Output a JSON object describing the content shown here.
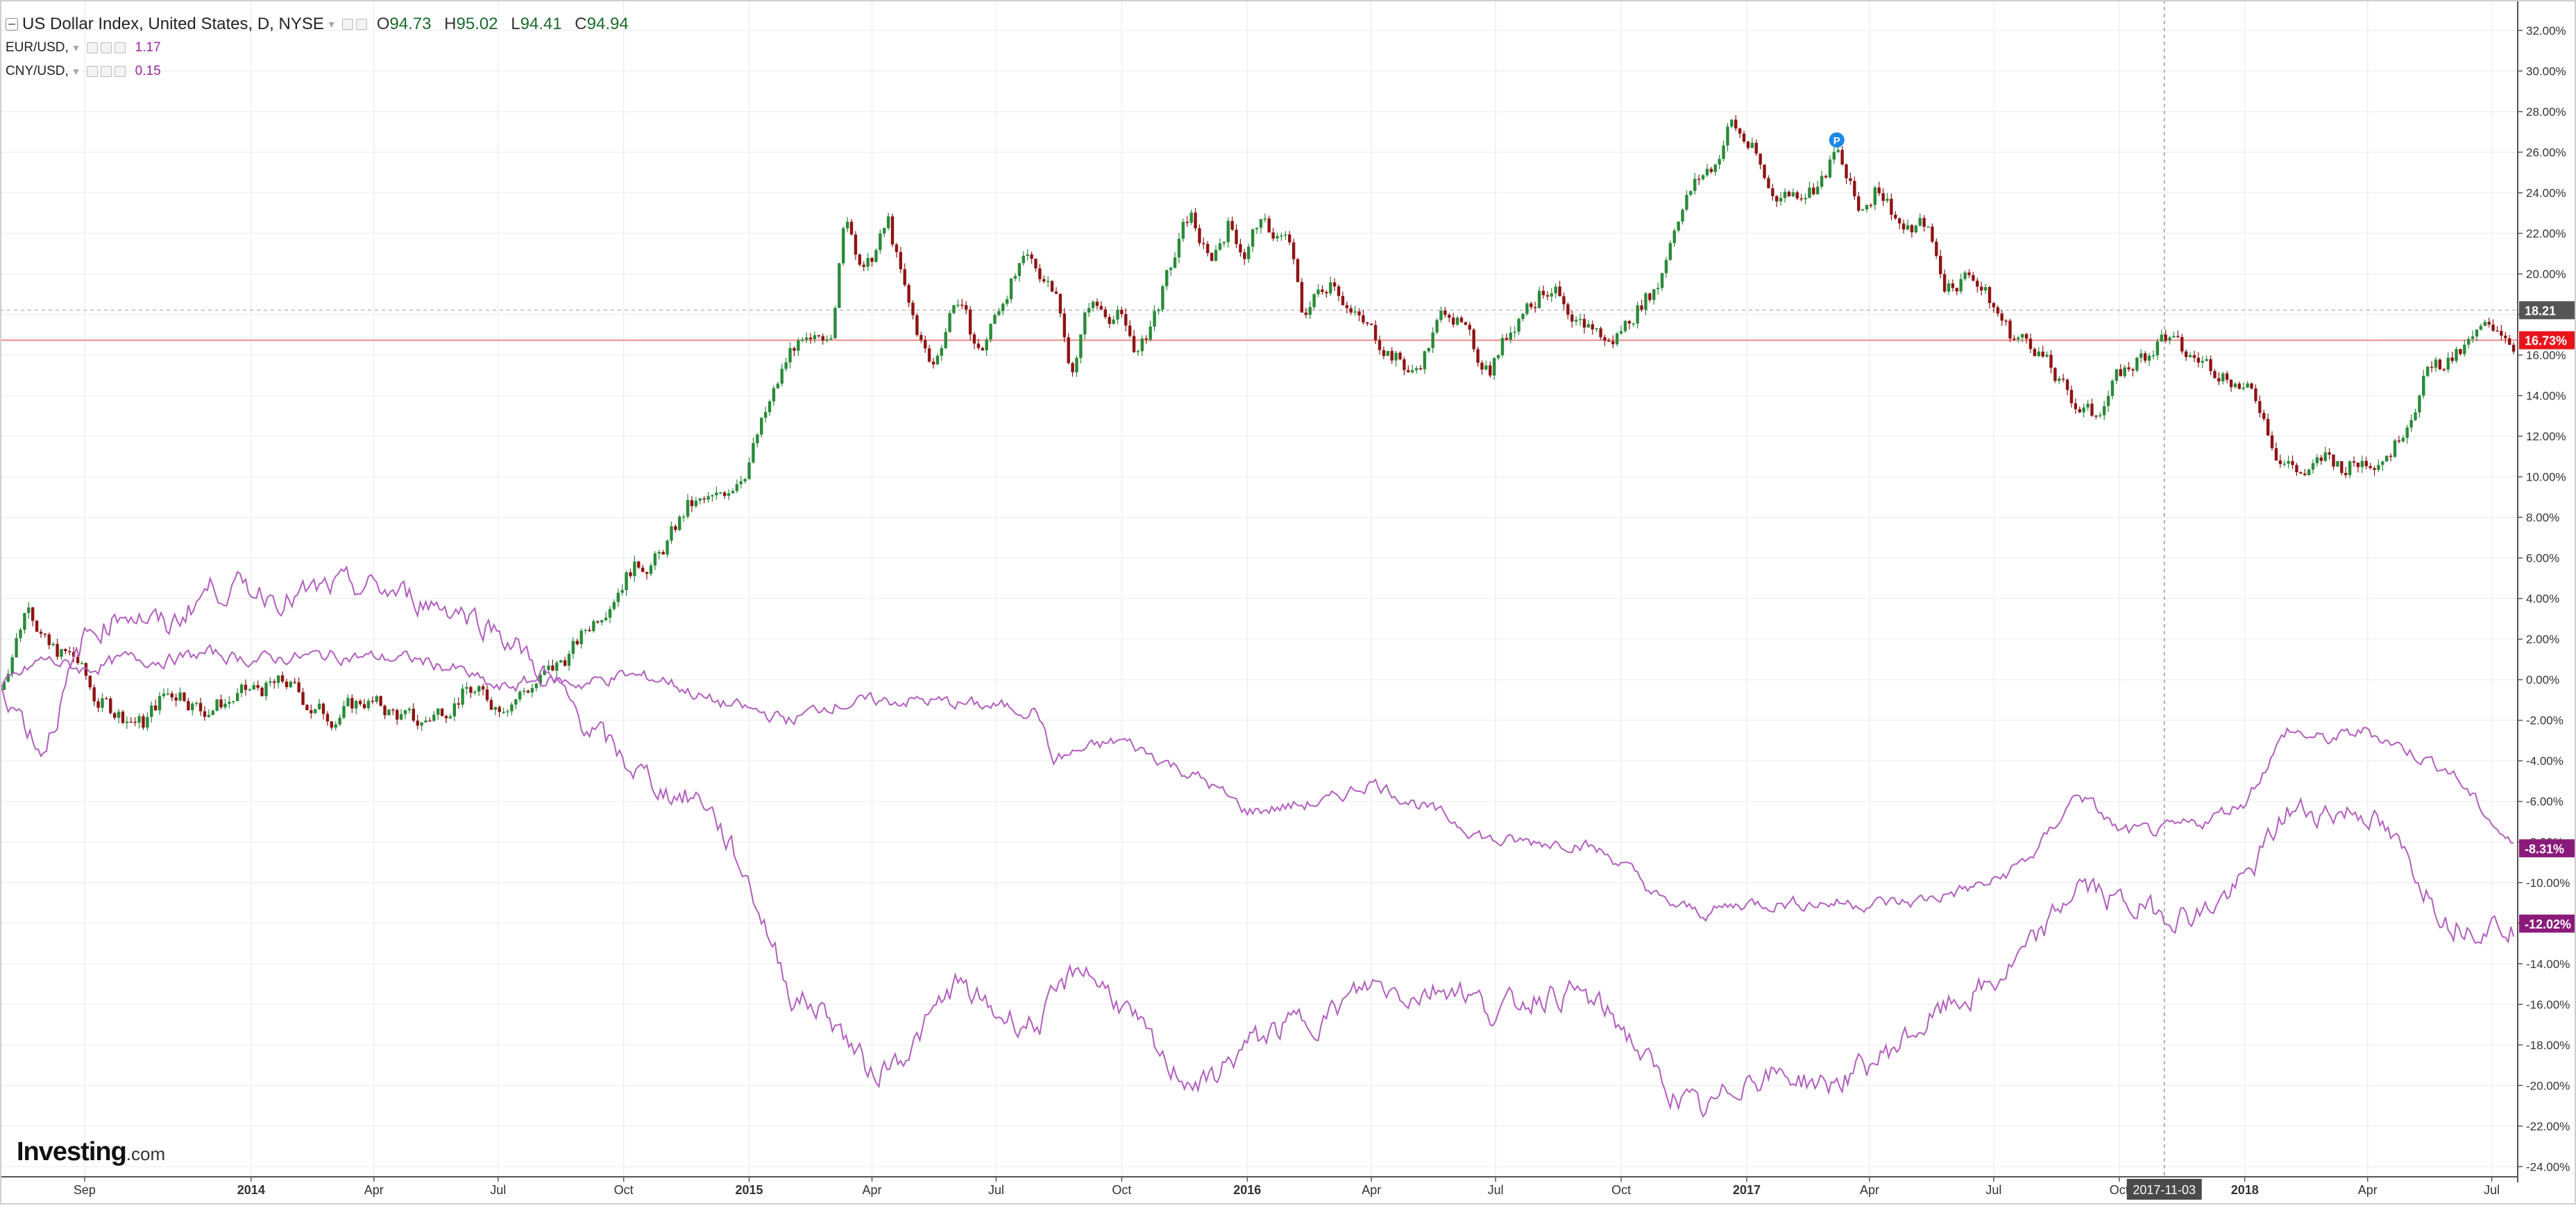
{
  "legend": {
    "main": {
      "title": "US Dollar Index, United States, D, NYSE",
      "o_label": "O",
      "o": "94.73",
      "h_label": "H",
      "h": "95.02",
      "l_label": "L",
      "l": "94.41",
      "c_label": "C",
      "c": "94.94"
    },
    "compare": [
      {
        "name": "EUR/USD,",
        "value": "1.17"
      },
      {
        "name": "CNY/USD,",
        "value": "0.15"
      }
    ]
  },
  "logo": {
    "brand": "Investing",
    "suffix": ".com"
  },
  "crosshair_date": "2017-11-03",
  "price_tags": {
    "last_dashed": "18.21",
    "current": "16.73%",
    "eur": "-8.31%",
    "cny": "-12.02%"
  },
  "colors": {
    "up": "#2a8a3a",
    "down": "#8e1414",
    "compare": "#b25fbe",
    "current_line": "#f08a8a",
    "current_tag": "#e8141c",
    "compare_tag": "#8a1a7a",
    "grid": "#f0f0f0"
  },
  "chart_data": {
    "type": "line",
    "title": "US Dollar Index, United States, D, NYSE",
    "x_axis": {
      "start": "2013-07-01",
      "end": "2018-07-20",
      "ticks": [
        {
          "date": "2013-09-01",
          "label": "Sep",
          "bold": false
        },
        {
          "date": "2014-01-01",
          "label": "2014",
          "bold": true
        },
        {
          "date": "2014-04-01",
          "label": "Apr",
          "bold": false
        },
        {
          "date": "2014-07-01",
          "label": "Jul",
          "bold": false
        },
        {
          "date": "2014-10-01",
          "label": "Oct",
          "bold": false
        },
        {
          "date": "2015-01-01",
          "label": "2015",
          "bold": true
        },
        {
          "date": "2015-04-01",
          "label": "Apr",
          "bold": false
        },
        {
          "date": "2015-07-01",
          "label": "Jul",
          "bold": false
        },
        {
          "date": "2015-10-01",
          "label": "Oct",
          "bold": false
        },
        {
          "date": "2016-01-01",
          "label": "2016",
          "bold": true
        },
        {
          "date": "2016-04-01",
          "label": "Apr",
          "bold": false
        },
        {
          "date": "2016-07-01",
          "label": "Jul",
          "bold": false
        },
        {
          "date": "2016-10-01",
          "label": "Oct",
          "bold": false
        },
        {
          "date": "2017-01-01",
          "label": "2017",
          "bold": true
        },
        {
          "date": "2017-04-01",
          "label": "Apr",
          "bold": false
        },
        {
          "date": "2017-07-01",
          "label": "Jul",
          "bold": false
        },
        {
          "date": "2017-10-01",
          "label": "Oct",
          "bold": false
        },
        {
          "date": "2018-01-01",
          "label": "2018",
          "bold": true
        },
        {
          "date": "2018-04-01",
          "label": "Apr",
          "bold": false
        },
        {
          "date": "2018-07-01",
          "label": "Jul",
          "bold": false
        }
      ]
    },
    "y_axis": {
      "unit": "%",
      "min": -24.5,
      "max": 33.5,
      "ticks": [
        -24,
        -22,
        -20,
        -18,
        -16,
        -14,
        -12,
        -10,
        -8,
        -6,
        -4,
        -2,
        0,
        2,
        4,
        6,
        8,
        10,
        12,
        14,
        16,
        18,
        20,
        22,
        24,
        26,
        28,
        30,
        32
      ]
    },
    "horizontal_lines": [
      {
        "value": 18.21,
        "style": "dashed"
      },
      {
        "value": 16.73,
        "style": "solid"
      }
    ],
    "crosshair": {
      "date": "2017-11-03"
    },
    "marker": {
      "date": "2017-03-08",
      "value": 26.6,
      "label": "P"
    },
    "series": [
      {
        "type": "candlestick",
        "name": "US Dollar Index",
        "points": [
          [
            "2013-07-01",
            -0.5
          ],
          [
            "2013-07-22",
            4.0
          ],
          [
            "2013-08-05",
            1.5
          ],
          [
            "2013-08-26",
            1.0
          ],
          [
            "2013-09-09",
            -1.0
          ],
          [
            "2013-09-23",
            -1.5
          ],
          [
            "2013-10-14",
            -2.2
          ],
          [
            "2013-10-28",
            -0.8
          ],
          [
            "2013-11-11",
            -0.5
          ],
          [
            "2013-11-25",
            -1.5
          ],
          [
            "2013-12-16",
            -1.0
          ],
          [
            "2014-01-06",
            -0.5
          ],
          [
            "2014-01-27",
            -0.2
          ],
          [
            "2014-02-17",
            -1.5
          ],
          [
            "2014-03-03",
            -1.8
          ],
          [
            "2014-03-24",
            -1.0
          ],
          [
            "2014-04-14",
            -1.6
          ],
          [
            "2014-05-05",
            -2.2
          ],
          [
            "2014-05-19",
            -1.5
          ],
          [
            "2014-06-09",
            -0.5
          ],
          [
            "2014-06-30",
            -1.2
          ],
          [
            "2014-07-21",
            -0.5
          ],
          [
            "2014-08-11",
            0.5
          ],
          [
            "2014-08-25",
            1.5
          ],
          [
            "2014-09-15",
            3.5
          ],
          [
            "2014-10-06",
            5.5
          ],
          [
            "2014-10-27",
            6.0
          ],
          [
            "2014-11-17",
            8.5
          ],
          [
            "2014-12-08",
            8.8
          ],
          [
            "2014-12-29",
            10.5
          ],
          [
            "2015-01-19",
            14.0
          ],
          [
            "2015-02-02",
            16.5
          ],
          [
            "2015-02-16",
            16.2
          ],
          [
            "2015-03-02",
            17.5
          ],
          [
            "2015-03-13",
            23.0
          ],
          [
            "2015-03-27",
            20.0
          ],
          [
            "2015-04-13",
            22.5
          ],
          [
            "2015-04-27",
            18.5
          ],
          [
            "2015-05-15",
            15.2
          ],
          [
            "2015-06-01",
            19.0
          ],
          [
            "2015-06-19",
            16.0
          ],
          [
            "2015-07-10",
            19.5
          ],
          [
            "2015-07-24",
            20.5
          ],
          [
            "2015-08-14",
            19.5
          ],
          [
            "2015-08-24",
            15.0
          ],
          [
            "2015-09-07",
            18.5
          ],
          [
            "2015-09-28",
            18.0
          ],
          [
            "2015-10-14",
            16.0
          ],
          [
            "2015-11-02",
            19.5
          ],
          [
            "2015-11-20",
            23.0
          ],
          [
            "2015-12-04",
            20.5
          ],
          [
            "2015-12-18",
            22.5
          ],
          [
            "2015-12-31",
            21.0
          ],
          [
            "2016-01-08",
            22.5
          ],
          [
            "2016-02-01",
            21.5
          ],
          [
            "2016-02-10",
            18.0
          ],
          [
            "2016-03-04",
            20.0
          ],
          [
            "2016-03-18",
            18.0
          ],
          [
            "2016-04-11",
            16.5
          ],
          [
            "2016-05-02",
            15.0
          ],
          [
            "2016-05-27",
            18.5
          ],
          [
            "2016-06-17",
            16.0
          ],
          [
            "2016-06-27",
            15.5
          ],
          [
            "2016-07-22",
            18.5
          ],
          [
            "2016-08-12",
            19.5
          ],
          [
            "2016-08-26",
            17.0
          ],
          [
            "2016-09-09",
            17.5
          ],
          [
            "2016-09-23",
            16.5
          ],
          [
            "2016-10-14",
            18.5
          ],
          [
            "2016-10-28",
            19.5
          ],
          [
            "2016-11-11",
            23.0
          ],
          [
            "2016-11-25",
            24.5
          ],
          [
            "2016-12-09",
            25.5
          ],
          [
            "2016-12-20",
            27.5
          ],
          [
            "2017-01-06",
            26.0
          ],
          [
            "2017-01-18",
            24.0
          ],
          [
            "2017-02-03",
            24.0
          ],
          [
            "2017-02-24",
            24.5
          ],
          [
            "2017-03-08",
            26.0
          ],
          [
            "2017-03-24",
            23.0
          ],
          [
            "2017-04-07",
            24.5
          ],
          [
            "2017-04-28",
            22.0
          ],
          [
            "2017-05-12",
            22.5
          ],
          [
            "2017-05-26",
            19.5
          ],
          [
            "2017-06-16",
            20.0
          ],
          [
            "2017-06-30",
            18.5
          ],
          [
            "2017-07-14",
            17.0
          ],
          [
            "2017-08-01",
            16.5
          ],
          [
            "2017-08-18",
            14.5
          ],
          [
            "2017-09-01",
            13.5
          ],
          [
            "2017-09-11",
            13.0
          ],
          [
            "2017-10-02",
            15.0
          ],
          [
            "2017-10-27",
            16.5
          ],
          [
            "2017-11-03",
            17.0
          ],
          [
            "2017-11-17",
            16.0
          ],
          [
            "2017-12-08",
            15.5
          ],
          [
            "2017-12-22",
            15.0
          ],
          [
            "2018-01-12",
            13.5
          ],
          [
            "2018-01-26",
            11.0
          ],
          [
            "2018-02-16",
            10.0
          ],
          [
            "2018-03-02",
            11.0
          ],
          [
            "2018-03-16",
            10.5
          ],
          [
            "2018-04-06",
            11.0
          ],
          [
            "2018-04-20",
            11.5
          ],
          [
            "2018-05-04",
            13.5
          ],
          [
            "2018-05-18",
            15.5
          ],
          [
            "2018-06-08",
            16.0
          ],
          [
            "2018-06-22",
            17.0
          ],
          [
            "2018-07-06",
            17.5
          ],
          [
            "2018-07-17",
            16.7
          ]
        ]
      },
      {
        "type": "line",
        "name": "EUR/USD",
        "points": [
          [
            "2013-07-01",
            -0.5
          ],
          [
            "2013-08-01",
            1.0
          ],
          [
            "2013-09-01",
            0.5
          ],
          [
            "2013-10-01",
            1.0
          ],
          [
            "2013-11-01",
            1.0
          ],
          [
            "2013-12-01",
            1.3
          ],
          [
            "2014-01-01",
            1.0
          ],
          [
            "2014-03-01",
            1.2
          ],
          [
            "2014-05-01",
            1.0
          ],
          [
            "2014-06-01",
            0.5
          ],
          [
            "2014-07-01",
            -0.5
          ],
          [
            "2014-08-01",
            0.0
          ],
          [
            "2014-09-01",
            -0.2
          ],
          [
            "2014-10-01",
            0.2
          ],
          [
            "2014-11-01",
            0.0
          ],
          [
            "2014-12-01",
            -1.0
          ],
          [
            "2015-01-01",
            -1.5
          ],
          [
            "2015-02-01",
            -2.0
          ],
          [
            "2015-03-01",
            -1.2
          ],
          [
            "2015-05-01",
            -1.0
          ],
          [
            "2015-08-01",
            -1.5
          ],
          [
            "2015-08-11",
            -4.0
          ],
          [
            "2015-09-01",
            -3.5
          ],
          [
            "2015-10-01",
            -3.0
          ],
          [
            "2015-11-01",
            -4.0
          ],
          [
            "2015-12-01",
            -5.0
          ],
          [
            "2016-01-01",
            -6.5
          ],
          [
            "2016-03-01",
            -6.0
          ],
          [
            "2016-04-01",
            -5.0
          ],
          [
            "2016-05-01",
            -6.0
          ],
          [
            "2016-06-01",
            -7.0
          ],
          [
            "2016-07-01",
            -8.0
          ],
          [
            "2016-08-01",
            -8.0
          ],
          [
            "2016-09-01",
            -8.0
          ],
          [
            "2016-10-01",
            -9.0
          ],
          [
            "2016-11-01",
            -11.0
          ],
          [
            "2016-12-01",
            -11.5
          ],
          [
            "2017-01-01",
            -11.0
          ],
          [
            "2017-03-01",
            -11.0
          ],
          [
            "2017-05-01",
            -11.0
          ],
          [
            "2017-07-01",
            -10.0
          ],
          [
            "2017-08-01",
            -8.5
          ],
          [
            "2017-09-01",
            -5.5
          ],
          [
            "2017-10-01",
            -7.5
          ],
          [
            "2017-11-01",
            -7.5
          ],
          [
            "2017-12-01",
            -7.0
          ],
          [
            "2018-01-01",
            -6.0
          ],
          [
            "2018-02-01",
            -2.5
          ],
          [
            "2018-03-01",
            -3.0
          ],
          [
            "2018-04-01",
            -2.5
          ],
          [
            "2018-05-01",
            -3.5
          ],
          [
            "2018-06-01",
            -4.5
          ],
          [
            "2018-07-01",
            -7.0
          ],
          [
            "2018-07-17",
            -8.31
          ]
        ]
      },
      {
        "type": "line",
        "name": "CNY/USD",
        "points": [
          [
            "2013-07-01",
            0.0
          ],
          [
            "2013-08-01",
            -3.5
          ],
          [
            "2013-09-01",
            2.0
          ],
          [
            "2013-10-01",
            3.5
          ],
          [
            "2013-11-01",
            2.5
          ],
          [
            "2013-12-01",
            4.5
          ],
          [
            "2014-01-01",
            4.5
          ],
          [
            "2014-02-01",
            4.0
          ],
          [
            "2014-03-01",
            4.5
          ],
          [
            "2014-04-01",
            4.5
          ],
          [
            "2014-05-01",
            4.0
          ],
          [
            "2014-06-01",
            3.5
          ],
          [
            "2014-07-01",
            2.5
          ],
          [
            "2014-08-01",
            0.5
          ],
          [
            "2014-09-01",
            -2.0
          ],
          [
            "2014-10-01",
            -4.0
          ],
          [
            "2014-11-01",
            -5.5
          ],
          [
            "2014-12-01",
            -6.0
          ],
          [
            "2015-01-01",
            -10.0
          ],
          [
            "2015-02-01",
            -15.5
          ],
          [
            "2015-03-01",
            -16.5
          ],
          [
            "2015-04-01",
            -19.5
          ],
          [
            "2015-05-01",
            -18.0
          ],
          [
            "2015-06-01",
            -15.0
          ],
          [
            "2015-07-01",
            -16.5
          ],
          [
            "2015-08-01",
            -17.0
          ],
          [
            "2015-09-01",
            -14.0
          ],
          [
            "2015-10-01",
            -16.0
          ],
          [
            "2015-11-01",
            -19.0
          ],
          [
            "2015-12-01",
            -20.0
          ],
          [
            "2016-01-01",
            -18.0
          ],
          [
            "2016-02-01",
            -17.0
          ],
          [
            "2016-03-01",
            -16.5
          ],
          [
            "2016-04-01",
            -15.0
          ],
          [
            "2016-05-01",
            -15.5
          ],
          [
            "2016-06-01",
            -15.0
          ],
          [
            "2016-07-01",
            -16.5
          ],
          [
            "2016-08-01",
            -15.5
          ],
          [
            "2016-09-01",
            -15.5
          ],
          [
            "2016-10-01",
            -17.0
          ],
          [
            "2016-11-01",
            -20.0
          ],
          [
            "2016-12-01",
            -21.5
          ],
          [
            "2017-01-01",
            -19.5
          ],
          [
            "2017-02-01",
            -19.5
          ],
          [
            "2017-03-01",
            -20.0
          ],
          [
            "2017-04-01",
            -19.0
          ],
          [
            "2017-05-01",
            -17.5
          ],
          [
            "2017-06-01",
            -16.0
          ],
          [
            "2017-07-01",
            -15.0
          ],
          [
            "2017-08-01",
            -13.0
          ],
          [
            "2017-09-01",
            -10.0
          ],
          [
            "2017-10-01",
            -11.0
          ],
          [
            "2017-11-01",
            -11.5
          ],
          [
            "2017-12-01",
            -11.5
          ],
          [
            "2018-01-01",
            -10.0
          ],
          [
            "2018-02-01",
            -6.5
          ],
          [
            "2018-03-01",
            -6.5
          ],
          [
            "2018-04-01",
            -6.5
          ],
          [
            "2018-05-01",
            -9.0
          ],
          [
            "2018-06-01",
            -12.0
          ],
          [
            "2018-07-01",
            -12.0
          ],
          [
            "2018-07-17",
            -12.02
          ]
        ]
      }
    ]
  }
}
